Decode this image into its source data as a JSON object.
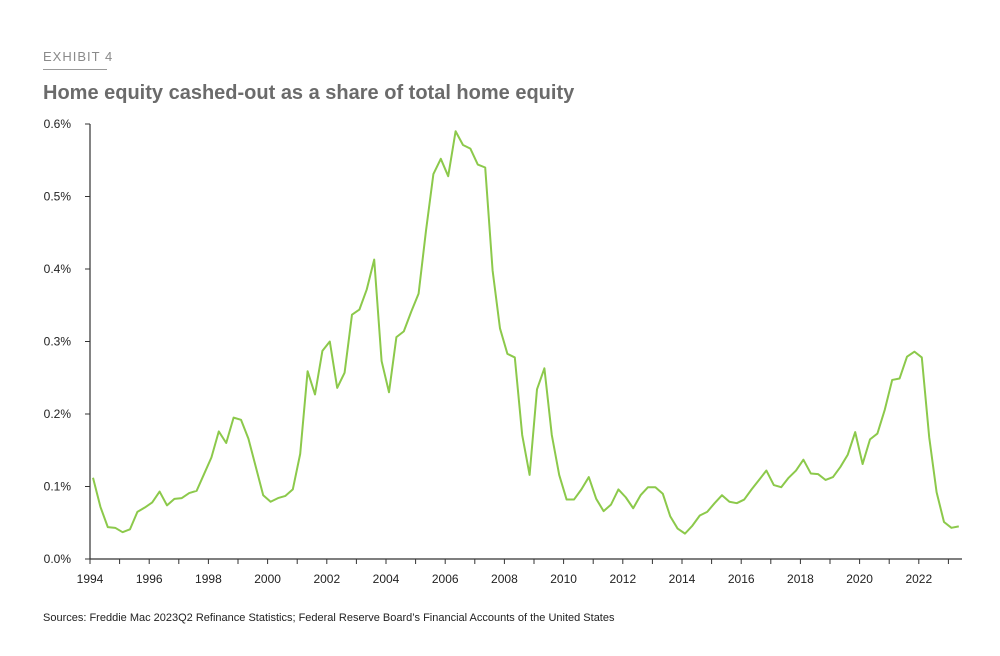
{
  "header": {
    "exhibit_label": "EXHIBIT 4",
    "title": "Home equity cashed-out as a share of total home equity"
  },
  "footer": {
    "source": "Sources: Freddie Mac 2023Q2 Refinance Statistics; Federal Reserve Board’s Financial Accounts of the United States"
  },
  "chart_data": {
    "type": "line",
    "title": "Home equity cashed-out as a share of total home equity",
    "xlabel": "",
    "ylabel": "",
    "ylim": [
      0,
      0.6
    ],
    "y_unit": "%",
    "yticks": [
      "0.0%",
      "0.1%",
      "0.2%",
      "0.3%",
      "0.4%",
      "0.5%",
      "0.6%"
    ],
    "xticks": [
      "1994",
      "1996",
      "1998",
      "2000",
      "2002",
      "2004",
      "2006",
      "2008",
      "2010",
      "2012",
      "2014",
      "2016",
      "2018",
      "2020",
      "2022"
    ],
    "grid": false,
    "line_color": "#8cc94b",
    "x": [
      "1994Q1",
      "1994Q2",
      "1994Q3",
      "1994Q4",
      "1995Q1",
      "1995Q2",
      "1995Q3",
      "1995Q4",
      "1996Q1",
      "1996Q2",
      "1996Q3",
      "1996Q4",
      "1997Q1",
      "1997Q2",
      "1997Q3",
      "1997Q4",
      "1998Q1",
      "1998Q2",
      "1998Q3",
      "1998Q4",
      "1999Q1",
      "1999Q2",
      "1999Q3",
      "1999Q4",
      "2000Q1",
      "2000Q2",
      "2000Q3",
      "2000Q4",
      "2001Q1",
      "2001Q2",
      "2001Q3",
      "2001Q4",
      "2002Q1",
      "2002Q2",
      "2002Q3",
      "2002Q4",
      "2003Q1",
      "2003Q2",
      "2003Q3",
      "2003Q4",
      "2004Q1",
      "2004Q2",
      "2004Q3",
      "2004Q4",
      "2005Q1",
      "2005Q2",
      "2005Q3",
      "2005Q4",
      "2006Q1",
      "2006Q2",
      "2006Q3",
      "2006Q4",
      "2007Q1",
      "2007Q2",
      "2007Q3",
      "2007Q4",
      "2008Q1",
      "2008Q2",
      "2008Q3",
      "2008Q4",
      "2009Q1",
      "2009Q2",
      "2009Q3",
      "2009Q4",
      "2010Q1",
      "2010Q2",
      "2010Q3",
      "2010Q4",
      "2011Q1",
      "2011Q2",
      "2011Q3",
      "2011Q4",
      "2012Q1",
      "2012Q2",
      "2012Q3",
      "2012Q4",
      "2013Q1",
      "2013Q2",
      "2013Q3",
      "2013Q4",
      "2014Q1",
      "2014Q2",
      "2014Q3",
      "2014Q4",
      "2015Q1",
      "2015Q2",
      "2015Q3",
      "2015Q4",
      "2016Q1",
      "2016Q2",
      "2016Q3",
      "2016Q4",
      "2017Q1",
      "2017Q2",
      "2017Q3",
      "2017Q4",
      "2018Q1",
      "2018Q2",
      "2018Q3",
      "2018Q4",
      "2019Q1",
      "2019Q2",
      "2019Q3",
      "2019Q4",
      "2020Q1",
      "2020Q2",
      "2020Q3",
      "2020Q4",
      "2021Q1",
      "2021Q2",
      "2021Q3",
      "2021Q4",
      "2022Q1",
      "2022Q2",
      "2022Q3",
      "2022Q4",
      "2023Q1",
      "2023Q2"
    ],
    "values": [
      0.112,
      0.072,
      0.044,
      0.043,
      0.037,
      0.041,
      0.065,
      0.071,
      0.078,
      0.093,
      0.074,
      0.083,
      0.084,
      0.091,
      0.094,
      0.117,
      0.14,
      0.176,
      0.16,
      0.195,
      0.192,
      0.166,
      0.127,
      0.088,
      0.079,
      0.084,
      0.087,
      0.096,
      0.145,
      0.259,
      0.227,
      0.287,
      0.3,
      0.236,
      0.257,
      0.337,
      0.344,
      0.372,
      0.413,
      0.273,
      0.23,
      0.306,
      0.314,
      0.341,
      0.366,
      0.453,
      0.531,
      0.552,
      0.528,
      0.59,
      0.571,
      0.566,
      0.544,
      0.54,
      0.398,
      0.318,
      0.283,
      0.278,
      0.171,
      0.116,
      0.234,
      0.263,
      0.171,
      0.116,
      0.082,
      0.082,
      0.096,
      0.113,
      0.083,
      0.066,
      0.075,
      0.096,
      0.085,
      0.07,
      0.088,
      0.099,
      0.099,
      0.09,
      0.059,
      0.042,
      0.035,
      0.046,
      0.06,
      0.065,
      0.077,
      0.088,
      0.079,
      0.077,
      0.082,
      0.096,
      0.109,
      0.122,
      0.102,
      0.099,
      0.112,
      0.122,
      0.137,
      0.118,
      0.117,
      0.109,
      0.113,
      0.127,
      0.144,
      0.175,
      0.131,
      0.165,
      0.173,
      0.206,
      0.247,
      0.249,
      0.279,
      0.286,
      0.278,
      0.168,
      0.092,
      0.051,
      0.043,
      0.045
    ]
  }
}
